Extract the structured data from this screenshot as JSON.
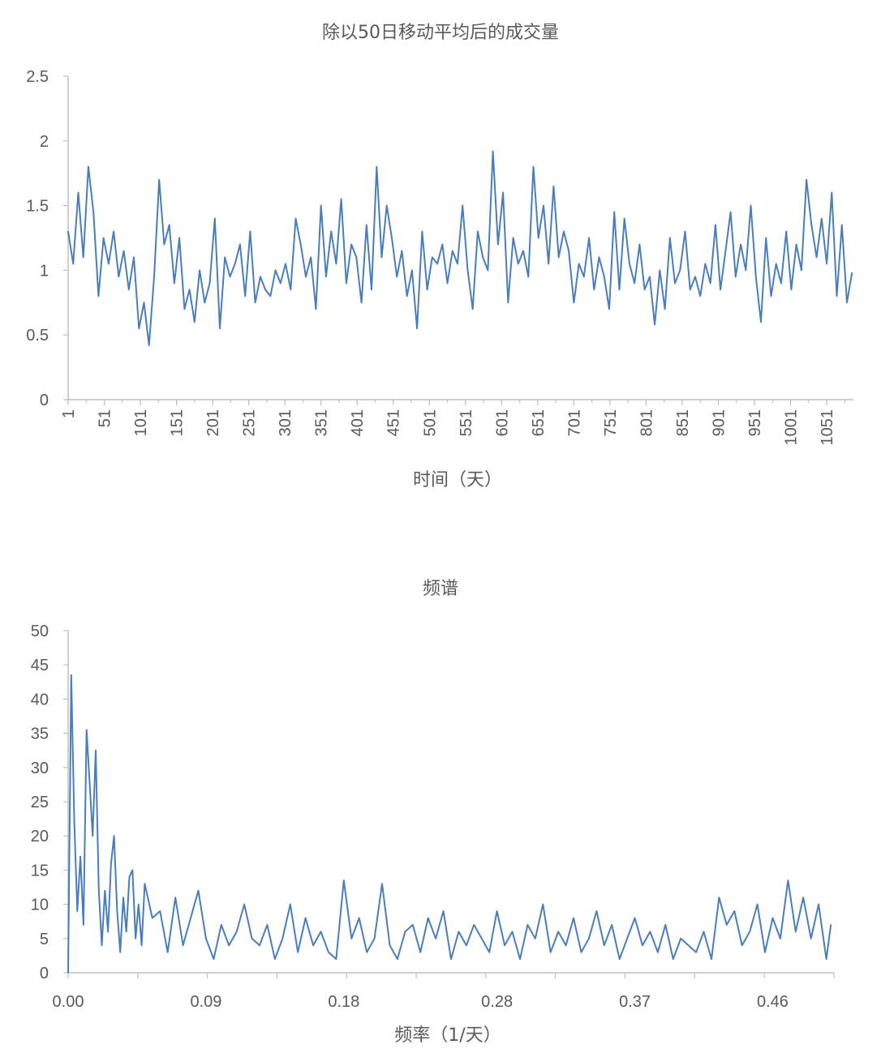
{
  "colors": {
    "series": "#4a7ebb",
    "axis": "#bfbfbf",
    "text": "#595959"
  },
  "chart_data": [
    {
      "type": "line",
      "title": "除以50日移动平均后的成交量",
      "xlabel": "时间（天）",
      "ylabel": "",
      "ylim": [
        0,
        2.5
      ],
      "yticks": [
        "0",
        "0.5",
        "1",
        "1.5",
        "2",
        "2.5"
      ],
      "x_tick_labels": [
        "1",
        "51",
        "101",
        "151",
        "201",
        "251",
        "301",
        "351",
        "401",
        "451",
        "501",
        "551",
        "601",
        "651",
        "701",
        "751",
        "801",
        "851",
        "901",
        "951",
        "1001",
        "1051"
      ],
      "x_range": [
        1,
        1088
      ],
      "grid": false,
      "legend": "none",
      "series": [
        {
          "x": [
            1,
            8,
            15,
            22,
            29,
            36,
            43,
            50,
            57,
            64,
            71,
            78,
            85,
            92,
            99,
            106,
            113,
            120,
            127,
            134,
            141,
            148,
            155,
            162,
            169,
            176,
            183,
            190,
            197,
            204,
            211,
            218,
            225,
            232,
            239,
            246,
            253,
            260,
            267,
            274,
            281,
            288,
            295,
            302,
            309,
            316,
            323,
            330,
            337,
            344,
            351,
            358,
            365,
            372,
            379,
            386,
            393,
            400,
            407,
            414,
            421,
            428,
            435,
            442,
            449,
            456,
            463,
            470,
            477,
            484,
            491,
            498,
            505,
            512,
            519,
            526,
            533,
            540,
            547,
            554,
            561,
            568,
            575,
            582,
            589,
            596,
            603,
            610,
            617,
            624,
            631,
            638,
            645,
            652,
            659,
            666,
            673,
            680,
            687,
            694,
            701,
            708,
            715,
            722,
            729,
            736,
            743,
            750,
            757,
            764,
            771,
            778,
            785,
            792,
            799,
            806,
            813,
            820,
            827,
            834,
            841,
            848,
            855,
            862,
            869,
            876,
            883,
            890,
            897,
            904,
            911,
            918,
            925,
            932,
            939,
            946,
            953,
            960,
            967,
            974,
            981,
            988,
            995,
            1002,
            1009,
            1016,
            1023,
            1030,
            1037,
            1044,
            1051,
            1058,
            1065,
            1072,
            1079,
            1086
          ],
          "values": [
            1.3,
            1.05,
            1.6,
            1.1,
            1.8,
            1.45,
            0.8,
            1.25,
            1.05,
            1.3,
            0.95,
            1.15,
            0.85,
            1.1,
            0.55,
            0.75,
            0.42,
            0.95,
            1.7,
            1.2,
            1.35,
            0.9,
            1.25,
            0.7,
            0.85,
            0.6,
            1.0,
            0.75,
            0.9,
            1.4,
            0.55,
            1.1,
            0.95,
            1.05,
            1.2,
            0.8,
            1.3,
            0.75,
            0.95,
            0.85,
            0.8,
            1.0,
            0.9,
            1.05,
            0.85,
            1.4,
            1.2,
            0.95,
            1.1,
            0.7,
            1.5,
            0.95,
            1.3,
            1.05,
            1.55,
            0.9,
            1.2,
            1.1,
            0.75,
            1.35,
            0.85,
            1.8,
            1.1,
            1.5,
            1.25,
            0.95,
            1.15,
            0.8,
            1.0,
            0.55,
            1.3,
            0.85,
            1.1,
            1.05,
            1.2,
            0.9,
            1.15,
            1.05,
            1.5,
            1.0,
            0.7,
            1.3,
            1.1,
            1.0,
            1.92,
            1.2,
            1.6,
            0.75,
            1.25,
            1.05,
            1.15,
            0.95,
            1.8,
            1.25,
            1.5,
            1.05,
            1.65,
            1.1,
            1.3,
            1.15,
            0.75,
            1.05,
            0.95,
            1.25,
            0.85,
            1.1,
            0.95,
            0.7,
            1.45,
            0.85,
            1.4,
            1.05,
            0.9,
            1.2,
            0.85,
            0.95,
            0.58,
            1.0,
            0.7,
            1.25,
            0.9,
            1.0,
            1.3,
            0.85,
            0.95,
            0.8,
            1.05,
            0.9,
            1.35,
            0.85,
            1.15,
            1.45,
            0.95,
            1.2,
            1.0,
            1.5,
            0.95,
            0.6,
            1.25,
            0.8,
            1.05,
            0.9,
            1.3,
            0.85,
            1.2,
            1.0,
            1.7,
            1.35,
            1.1,
            1.4,
            1.05,
            1.6,
            0.8,
            1.35,
            0.75,
            0.98
          ]
        }
      ]
    },
    {
      "type": "line",
      "title": "频谱",
      "xlabel": "频率（1/天）",
      "ylabel": "",
      "ylim": [
        0,
        50
      ],
      "yticks": [
        "0",
        "5",
        "10",
        "15",
        "20",
        "25",
        "30",
        "35",
        "40",
        "45",
        "50"
      ],
      "x_tick_labels": [
        "0.00",
        "0.09",
        "0.18",
        "0.28",
        "0.37",
        "0.46"
      ],
      "x_range": [
        0,
        0.5
      ],
      "grid": false,
      "legend": "none",
      "series": [
        {
          "x": [
            0.0,
            0.002,
            0.004,
            0.006,
            0.008,
            0.01,
            0.012,
            0.014,
            0.016,
            0.018,
            0.02,
            0.022,
            0.024,
            0.026,
            0.028,
            0.03,
            0.032,
            0.034,
            0.036,
            0.038,
            0.04,
            0.042,
            0.044,
            0.046,
            0.048,
            0.05,
            0.055,
            0.06,
            0.065,
            0.07,
            0.075,
            0.08,
            0.085,
            0.09,
            0.095,
            0.1,
            0.105,
            0.11,
            0.115,
            0.12,
            0.125,
            0.13,
            0.135,
            0.14,
            0.145,
            0.15,
            0.155,
            0.16,
            0.165,
            0.17,
            0.175,
            0.18,
            0.185,
            0.19,
            0.195,
            0.2,
            0.205,
            0.21,
            0.215,
            0.22,
            0.225,
            0.23,
            0.235,
            0.24,
            0.245,
            0.25,
            0.255,
            0.26,
            0.265,
            0.27,
            0.275,
            0.28,
            0.285,
            0.29,
            0.295,
            0.3,
            0.305,
            0.31,
            0.315,
            0.32,
            0.325,
            0.33,
            0.335,
            0.34,
            0.345,
            0.35,
            0.355,
            0.36,
            0.365,
            0.37,
            0.375,
            0.38,
            0.385,
            0.39,
            0.395,
            0.4,
            0.405,
            0.41,
            0.415,
            0.42,
            0.425,
            0.43,
            0.435,
            0.44,
            0.445,
            0.45,
            0.455,
            0.46,
            0.465,
            0.47,
            0.475,
            0.48,
            0.485,
            0.49,
            0.495,
            0.498
          ],
          "values": [
            0,
            43.5,
            22,
            9,
            17,
            7,
            35.5,
            28,
            20,
            32.5,
            12,
            4,
            12,
            6,
            16,
            20,
            9,
            3,
            11,
            6,
            14,
            15,
            5,
            10,
            4,
            13,
            8,
            9,
            3,
            11,
            4,
            8,
            12,
            5,
            2,
            7,
            4,
            6,
            10,
            5,
            4,
            7,
            2,
            5,
            10,
            3,
            8,
            4,
            6,
            3,
            2,
            13.5,
            5,
            8,
            3,
            5,
            13,
            4,
            2,
            6,
            7,
            3,
            8,
            5,
            9,
            2,
            6,
            4,
            7,
            5,
            3,
            9,
            4,
            6,
            2,
            7,
            5,
            10,
            3,
            6,
            4,
            8,
            3,
            5,
            9,
            4,
            7,
            2,
            5,
            8,
            4,
            6,
            3,
            7,
            2,
            5,
            4,
            3,
            6,
            2,
            11,
            7,
            9,
            4,
            6,
            10,
            3,
            8,
            5,
            13.5,
            6,
            11,
            5,
            10,
            2,
            7
          ]
        }
      ]
    }
  ]
}
